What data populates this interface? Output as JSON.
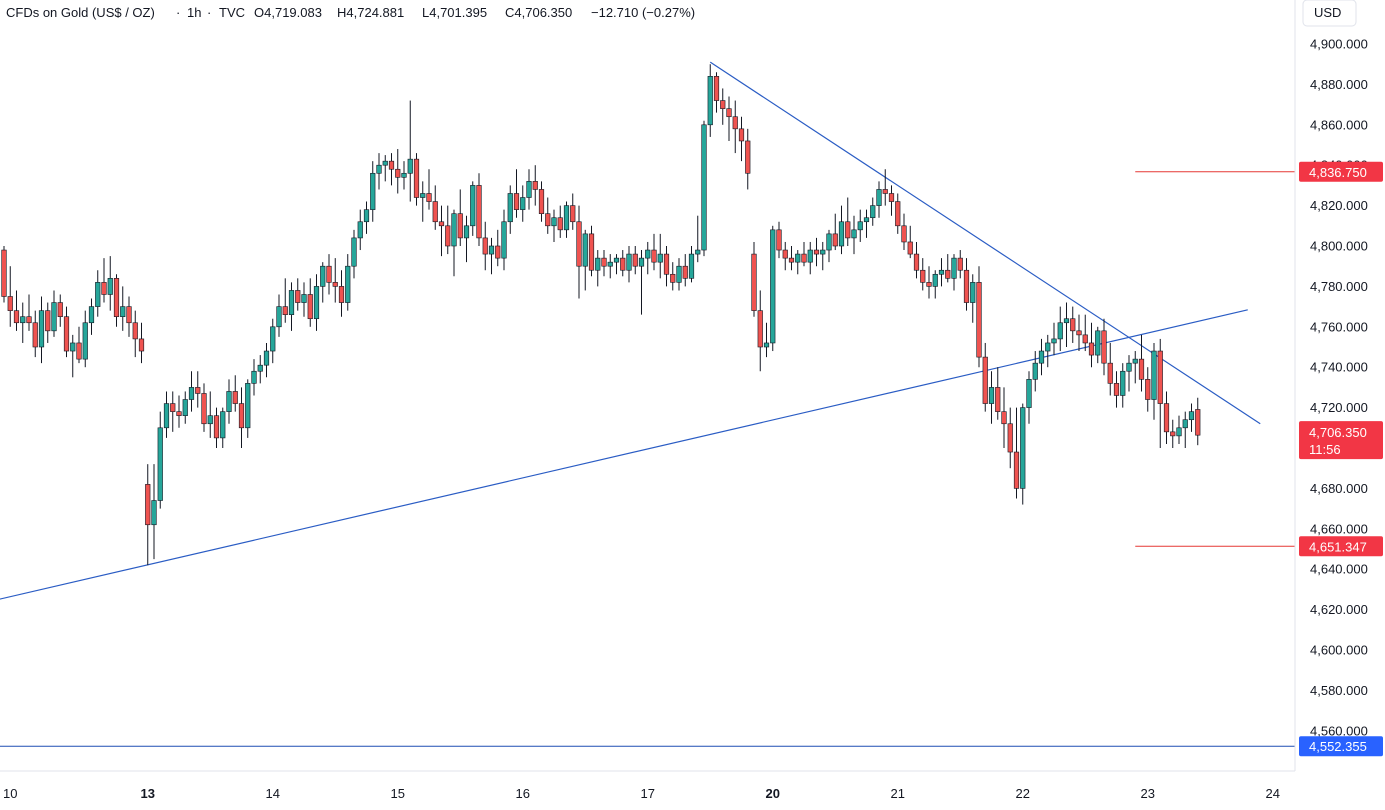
{
  "header": {
    "symbol": "CFDs on Gold (US$ / OZ)",
    "interval": "1h",
    "source": "TVC",
    "open_label": "O",
    "open": "4,719.083",
    "high_label": "H",
    "high": "4,724.881",
    "low_label": "L",
    "low": "4,701.395",
    "close_label": "C",
    "close": "4,706.350",
    "change": "−12.710 (−0.27%)",
    "currency": "USD"
  },
  "colors": {
    "up": "#26a69a",
    "down": "#ef5350",
    "wick": "#131722",
    "trendline": "#2a5cc4",
    "level_red": "#e53935",
    "level_blue": "#1e4fb3",
    "badge_red": "#f23645",
    "badge_blue": "#2962ff"
  },
  "chart_data": {
    "type": "candlestick",
    "title": "CFDs on Gold (US$ / OZ) · 1h · TVC",
    "ylim": [
      4540,
      4910
    ],
    "y_ticks": [
      "4,560.000",
      "4,580.000",
      "4,600.000",
      "4,620.000",
      "4,640.000",
      "4,660.000",
      "4,680.000",
      "4,700.000",
      "4,720.000",
      "4,740.000",
      "4,760.000",
      "4,780.000",
      "4,800.000",
      "4,820.000",
      "4,840.000",
      "4,860.000",
      "4,880.000",
      "4,900.000"
    ],
    "y_tick_values": [
      4560,
      4580,
      4600,
      4620,
      4640,
      4660,
      4680,
      4700,
      4720,
      4740,
      4760,
      4780,
      4800,
      4820,
      4840,
      4860,
      4880,
      4900
    ],
    "x_ticks": [
      {
        "label": "10",
        "bold": false,
        "i": 1
      },
      {
        "label": "13",
        "bold": true,
        "i": 23
      },
      {
        "label": "14",
        "bold": false,
        "i": 43
      },
      {
        "label": "15",
        "bold": false,
        "i": 63
      },
      {
        "label": "16",
        "bold": false,
        "i": 83
      },
      {
        "label": "17",
        "bold": false,
        "i": 103
      },
      {
        "label": "20",
        "bold": true,
        "i": 123
      },
      {
        "label": "21",
        "bold": false,
        "i": 143
      },
      {
        "label": "22",
        "bold": false,
        "i": 163
      },
      {
        "label": "23",
        "bold": false,
        "i": 183
      },
      {
        "label": "24",
        "bold": false,
        "i": 203
      }
    ],
    "candles": [
      [
        4798,
        4800,
        4772,
        4775
      ],
      [
        4775,
        4790,
        4760,
        4768
      ],
      [
        4768,
        4778,
        4758,
        4762
      ],
      [
        4762,
        4772,
        4752,
        4765
      ],
      [
        4765,
        4776,
        4758,
        4762
      ],
      [
        4762,
        4768,
        4745,
        4750
      ],
      [
        4750,
        4775,
        4742,
        4768
      ],
      [
        4768,
        4772,
        4752,
        4758
      ],
      [
        4758,
        4778,
        4755,
        4772
      ],
      [
        4772,
        4776,
        4760,
        4765
      ],
      [
        4765,
        4770,
        4745,
        4748
      ],
      [
        4748,
        4756,
        4735,
        4752
      ],
      [
        4752,
        4760,
        4742,
        4744
      ],
      [
        4744,
        4768,
        4740,
        4762
      ],
      [
        4762,
        4774,
        4756,
        4770
      ],
      [
        4770,
        4788,
        4765,
        4782
      ],
      [
        4782,
        4794,
        4772,
        4776
      ],
      [
        4776,
        4795,
        4768,
        4784
      ],
      [
        4784,
        4786,
        4760,
        4765
      ],
      [
        4765,
        4780,
        4758,
        4770
      ],
      [
        4770,
        4775,
        4755,
        4762
      ],
      [
        4762,
        4768,
        4745,
        4754
      ],
      [
        4754,
        4762,
        4742,
        4748
      ],
      [
        4682,
        4692,
        4642,
        4662
      ],
      [
        4662,
        4692,
        4645,
        4674
      ],
      [
        4674,
        4718,
        4670,
        4710
      ],
      [
        4710,
        4728,
        4705,
        4722
      ],
      [
        4722,
        4728,
        4708,
        4718
      ],
      [
        4718,
        4726,
        4710,
        4716
      ],
      [
        4716,
        4728,
        4712,
        4724
      ],
      [
        4724,
        4738,
        4718,
        4730
      ],
      [
        4730,
        4738,
        4720,
        4727
      ],
      [
        4727,
        4732,
        4708,
        4712
      ],
      [
        4712,
        4728,
        4705,
        4716
      ],
      [
        4716,
        4720,
        4700,
        4705
      ],
      [
        4705,
        4720,
        4700,
        4718
      ],
      [
        4718,
        4734,
        4712,
        4728
      ],
      [
        4728,
        4736,
        4718,
        4722
      ],
      [
        4722,
        4730,
        4700,
        4710
      ],
      [
        4710,
        4734,
        4705,
        4732
      ],
      [
        4732,
        4744,
        4726,
        4738
      ],
      [
        4738,
        4746,
        4732,
        4741
      ],
      [
        4741,
        4752,
        4735,
        4748
      ],
      [
        4748,
        4764,
        4742,
        4760
      ],
      [
        4760,
        4776,
        4755,
        4770
      ],
      [
        4770,
        4784,
        4762,
        4766
      ],
      [
        4766,
        4782,
        4758,
        4778
      ],
      [
        4778,
        4784,
        4768,
        4772
      ],
      [
        4772,
        4782,
        4765,
        4776
      ],
      [
        4776,
        4784,
        4760,
        4764
      ],
      [
        4764,
        4786,
        4758,
        4780
      ],
      [
        4780,
        4792,
        4772,
        4790
      ],
      [
        4790,
        4796,
        4776,
        4782
      ],
      [
        4782,
        4794,
        4772,
        4780
      ],
      [
        4780,
        4788,
        4765,
        4772
      ],
      [
        4772,
        4796,
        4768,
        4790
      ],
      [
        4790,
        4808,
        4784,
        4804
      ],
      [
        4804,
        4818,
        4798,
        4812
      ],
      [
        4812,
        4822,
        4806,
        4818
      ],
      [
        4818,
        4842,
        4812,
        4836
      ],
      [
        4836,
        4846,
        4828,
        4840
      ],
      [
        4840,
        4845,
        4832,
        4842
      ],
      [
        4842,
        4846,
        4830,
        4838
      ],
      [
        4838,
        4848,
        4826,
        4834
      ],
      [
        4834,
        4842,
        4828,
        4836
      ],
      [
        4836,
        4872,
        4822,
        4843
      ],
      [
        4843,
        4846,
        4820,
        4824
      ],
      [
        4824,
        4832,
        4812,
        4826
      ],
      [
        4826,
        4838,
        4818,
        4822
      ],
      [
        4822,
        4830,
        4808,
        4812
      ],
      [
        4812,
        4820,
        4795,
        4810
      ],
      [
        4810,
        4820,
        4796,
        4800
      ],
      [
        4800,
        4818,
        4785,
        4816
      ],
      [
        4816,
        4828,
        4800,
        4804
      ],
      [
        4804,
        4815,
        4792,
        4810
      ],
      [
        4810,
        4832,
        4805,
        4830
      ],
      [
        4830,
        4836,
        4800,
        4804
      ],
      [
        4804,
        4812,
        4788,
        4796
      ],
      [
        4796,
        4804,
        4786,
        4800
      ],
      [
        4800,
        4808,
        4790,
        4794
      ],
      [
        4794,
        4818,
        4788,
        4812
      ],
      [
        4812,
        4830,
        4806,
        4826
      ],
      [
        4826,
        4838,
        4814,
        4818
      ],
      [
        4818,
        4830,
        4812,
        4824
      ],
      [
        4824,
        4838,
        4818,
        4832
      ],
      [
        4832,
        4840,
        4820,
        4828
      ],
      [
        4828,
        4832,
        4812,
        4816
      ],
      [
        4816,
        4824,
        4806,
        4810
      ],
      [
        4810,
        4818,
        4802,
        4814
      ],
      [
        4814,
        4820,
        4804,
        4808
      ],
      [
        4808,
        4822,
        4804,
        4820
      ],
      [
        4820,
        4826,
        4808,
        4812
      ],
      [
        4812,
        4820,
        4774,
        4790
      ],
      [
        4790,
        4808,
        4778,
        4806
      ],
      [
        4806,
        4810,
        4785,
        4788
      ],
      [
        4788,
        4798,
        4780,
        4794
      ],
      [
        4794,
        4798,
        4785,
        4790
      ],
      [
        4790,
        4796,
        4784,
        4792
      ],
      [
        4792,
        4796,
        4786,
        4794
      ],
      [
        4794,
        4798,
        4785,
        4788
      ],
      [
        4788,
        4800,
        4782,
        4796
      ],
      [
        4796,
        4800,
        4786,
        4790
      ],
      [
        4790,
        4798,
        4766,
        4794
      ],
      [
        4794,
        4802,
        4786,
        4798
      ],
      [
        4798,
        4806,
        4788,
        4792
      ],
      [
        4792,
        4806,
        4784,
        4796
      ],
      [
        4796,
        4800,
        4780,
        4786
      ],
      [
        4786,
        4792,
        4778,
        4782
      ],
      [
        4782,
        4794,
        4778,
        4790
      ],
      [
        4790,
        4796,
        4780,
        4784
      ],
      [
        4784,
        4800,
        4782,
        4796
      ],
      [
        4796,
        4815,
        4792,
        4798
      ],
      [
        4798,
        4862,
        4795,
        4860
      ],
      [
        4860,
        4890,
        4854,
        4884
      ],
      [
        4884,
        4886,
        4866,
        4872
      ],
      [
        4872,
        4878,
        4860,
        4868
      ],
      [
        4868,
        4874,
        4852,
        4864
      ],
      [
        4864,
        4872,
        4846,
        4858
      ],
      [
        4858,
        4864,
        4842,
        4852
      ],
      [
        4852,
        4858,
        4828,
        4836
      ],
      [
        4796,
        4802,
        4765,
        4768
      ],
      [
        4768,
        4778,
        4738,
        4750
      ],
      [
        4750,
        4762,
        4745,
        4752
      ],
      [
        4752,
        4810,
        4748,
        4808
      ],
      [
        4808,
        4812,
        4794,
        4798
      ],
      [
        4798,
        4802,
        4788,
        4794
      ],
      [
        4794,
        4800,
        4788,
        4792
      ],
      [
        4792,
        4798,
        4786,
        4796
      ],
      [
        4796,
        4802,
        4790,
        4792
      ],
      [
        4792,
        4802,
        4786,
        4798
      ],
      [
        4798,
        4804,
        4790,
        4796
      ],
      [
        4796,
        4802,
        4788,
        4798
      ],
      [
        4798,
        4808,
        4792,
        4806
      ],
      [
        4806,
        4816,
        4798,
        4800
      ],
      [
        4800,
        4820,
        4796,
        4812
      ],
      [
        4812,
        4824,
        4800,
        4804
      ],
      [
        4804,
        4815,
        4796,
        4808
      ],
      [
        4808,
        4818,
        4802,
        4812
      ],
      [
        4812,
        4818,
        4804,
        4814
      ],
      [
        4814,
        4824,
        4810,
        4820
      ],
      [
        4820,
        4832,
        4814,
        4828
      ],
      [
        4828,
        4838,
        4820,
        4826
      ],
      [
        4826,
        4830,
        4815,
        4822
      ],
      [
        4822,
        4826,
        4806,
        4810
      ],
      [
        4810,
        4816,
        4798,
        4802
      ],
      [
        4802,
        4810,
        4794,
        4796
      ],
      [
        4796,
        4802,
        4784,
        4788
      ],
      [
        4788,
        4794,
        4778,
        4782
      ],
      [
        4782,
        4790,
        4774,
        4780
      ],
      [
        4780,
        4788,
        4774,
        4786
      ],
      [
        4786,
        4794,
        4780,
        4788
      ],
      [
        4788,
        4796,
        4782,
        4784
      ],
      [
        4784,
        4796,
        4778,
        4794
      ],
      [
        4794,
        4798,
        4784,
        4788
      ],
      [
        4788,
        4794,
        4768,
        4772
      ],
      [
        4772,
        4786,
        4762,
        4782
      ],
      [
        4782,
        4790,
        4740,
        4745
      ],
      [
        4745,
        4752,
        4718,
        4722
      ],
      [
        4722,
        4738,
        4712,
        4730
      ],
      [
        4730,
        4740,
        4714,
        4718
      ],
      [
        4718,
        4730,
        4700,
        4712
      ],
      [
        4712,
        4720,
        4690,
        4698
      ],
      [
        4698,
        4720,
        4675,
        4680
      ],
      [
        4680,
        4722,
        4672,
        4720
      ],
      [
        4720,
        4738,
        4712,
        4734
      ],
      [
        4734,
        4748,
        4728,
        4742
      ],
      [
        4742,
        4754,
        4736,
        4748
      ],
      [
        4748,
        4756,
        4740,
        4752
      ],
      [
        4752,
        4762,
        4746,
        4754
      ],
      [
        4754,
        4770,
        4748,
        4762
      ],
      [
        4762,
        4772,
        4750,
        4764
      ],
      [
        4764,
        4770,
        4752,
        4758
      ],
      [
        4758,
        4766,
        4748,
        4756
      ],
      [
        4756,
        4766,
        4748,
        4752
      ],
      [
        4752,
        4762,
        4740,
        4746
      ],
      [
        4746,
        4760,
        4742,
        4758
      ],
      [
        4758,
        4764,
        4736,
        4742
      ],
      [
        4742,
        4752,
        4726,
        4732
      ],
      [
        4732,
        4738,
        4720,
        4726
      ],
      [
        4726,
        4742,
        4720,
        4738
      ],
      [
        4738,
        4746,
        4728,
        4742
      ],
      [
        4742,
        4748,
        4732,
        4744
      ],
      [
        4744,
        4756,
        4728,
        4734
      ],
      [
        4734,
        4740,
        4718,
        4724
      ],
      [
        4724,
        4752,
        4714,
        4748
      ],
      [
        4748,
        4754,
        4700,
        4722
      ],
      [
        4722,
        4728,
        4702,
        4708
      ],
      [
        4708,
        4714,
        4700,
        4706
      ],
      [
        4706,
        4716,
        4702,
        4710
      ],
      [
        4710,
        4718,
        4700,
        4714
      ],
      [
        4714,
        4722,
        4708,
        4718
      ],
      [
        4719.083,
        4724.881,
        4701.395,
        4706.35
      ]
    ],
    "trendlines": [
      {
        "name": "rising-support",
        "from": {
          "i": -10,
          "y": 4618.5
        },
        "to": {
          "i": 199,
          "y": 4768.4
        }
      },
      {
        "name": "falling-resistance",
        "from": {
          "i": 113,
          "y": 4891
        },
        "to": {
          "i": 201,
          "y": 4712
        }
      }
    ],
    "levels": [
      {
        "name": "resistance-level",
        "value": 4836.75,
        "label": "4,836.750",
        "color": "#e53935",
        "from_i": 181
      },
      {
        "name": "support-level",
        "value": 4651.347,
        "label": "4,651.347",
        "color": "#e53935",
        "from_i": 181
      },
      {
        "name": "lower-level",
        "value": 4552.355,
        "label": "4,552.355",
        "color": "#1e4fb3",
        "from_i": -10
      }
    ],
    "last_price": {
      "label": "4,706.350",
      "countdown": "11:56"
    }
  }
}
